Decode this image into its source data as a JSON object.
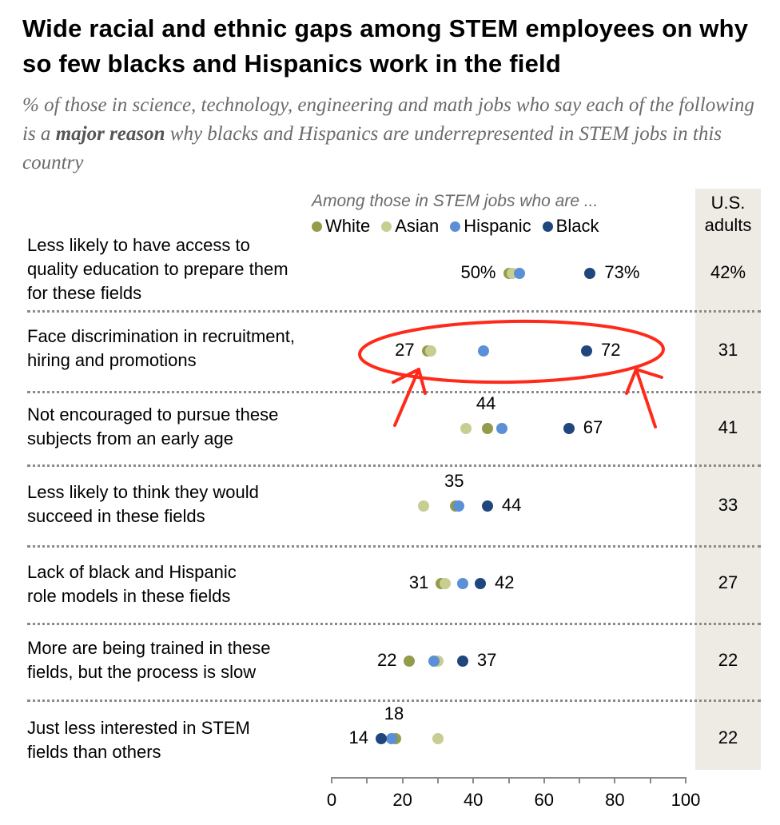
{
  "header": {
    "title": "Wide racial and ethnic gaps among STEM employees on why so few blacks and Hispanics work in the field",
    "subtitle_pre": "% of those in science, technology, engineering and math jobs who say each of the following is a ",
    "subtitle_bold": "major reason",
    "subtitle_post": " why blacks and Hispanics are underrepresented in STEM jobs in this country"
  },
  "legend": {
    "heading": "Among those in STEM jobs who are ...",
    "items": [
      {
        "label": "White",
        "color": "#949b4a"
      },
      {
        "label": "Asian",
        "color": "#c8cd92"
      },
      {
        "label": "Hispanic",
        "color": "#5b8fd6"
      },
      {
        "label": "Black",
        "color": "#1f477d"
      }
    ]
  },
  "us_column": {
    "heading_line1": "U.S.",
    "heading_line2": "adults"
  },
  "annotation": {
    "color": "#ff2a1a",
    "description": "red ellipse with two arrows highlighting the discrimination row"
  },
  "chart_data": {
    "type": "scatter",
    "title": "Wide racial and ethnic gaps among STEM employees on why so few blacks and Hispanics work in the field",
    "subtitle": "% of those in science, technology, engineering and math jobs who say each of the following is a major reason why blacks and Hispanics are underrepresented in STEM jobs in this country",
    "xlabel": "",
    "ylabel": "",
    "xlim": [
      0,
      100
    ],
    "x_ticks": [
      0,
      20,
      40,
      60,
      80,
      100
    ],
    "grid": false,
    "legend_position": "top",
    "categories": [
      "Less likely to have access to quality education to prepare them for these fields",
      "Face discrimination in recruitment, hiring and promotions",
      "Not encouraged to pursue these subjects from an early age",
      "Less likely to think they would succeed in these fields",
      "Lack of black and Hispanic role models in these fields",
      "More are being trained in these fields, but the process is slow",
      "Just less interested in STEM fields than others"
    ],
    "category_lines": [
      [
        "Less likely to have access to",
        "quality education to prepare them",
        "for these fields"
      ],
      [
        "Face discrimination in recruitment,",
        "hiring and promotions"
      ],
      [
        "Not encouraged to pursue these",
        "subjects from an early age"
      ],
      [
        "Less likely to think they would",
        "succeed in these fields"
      ],
      [
        "Lack of black and Hispanic",
        "role models in these fields"
      ],
      [
        "More are being trained in these",
        "fields, but the process is slow"
      ],
      [
        "Just less interested in STEM",
        "fields than others"
      ]
    ],
    "series": [
      {
        "name": "White",
        "color": "#949b4a",
        "values": [
          50,
          27,
          44,
          35,
          31,
          22,
          18
        ]
      },
      {
        "name": "Asian",
        "color": "#c8cd92",
        "values": [
          51,
          28,
          38,
          26,
          32,
          30,
          30
        ]
      },
      {
        "name": "Hispanic",
        "color": "#5b8fd6",
        "values": [
          53,
          43,
          48,
          36,
          37,
          29,
          17
        ]
      },
      {
        "name": "Black",
        "color": "#1f477d",
        "values": [
          73,
          72,
          67,
          44,
          42,
          37,
          14
        ]
      }
    ],
    "data_labels": [
      {
        "left": "50%",
        "right": "73%",
        "top": ""
      },
      {
        "left": "27",
        "right": "72",
        "top": ""
      },
      {
        "left": "",
        "right": "67",
        "top": "44"
      },
      {
        "left": "",
        "right": "44",
        "top": "35"
      },
      {
        "left": "31",
        "right": "42",
        "top": ""
      },
      {
        "left": "22",
        "right": "37",
        "top": ""
      },
      {
        "left": "14",
        "right": "",
        "top": "18"
      }
    ],
    "us_adults": [
      "42%",
      "31",
      "41",
      "33",
      "27",
      "22",
      "22"
    ]
  }
}
